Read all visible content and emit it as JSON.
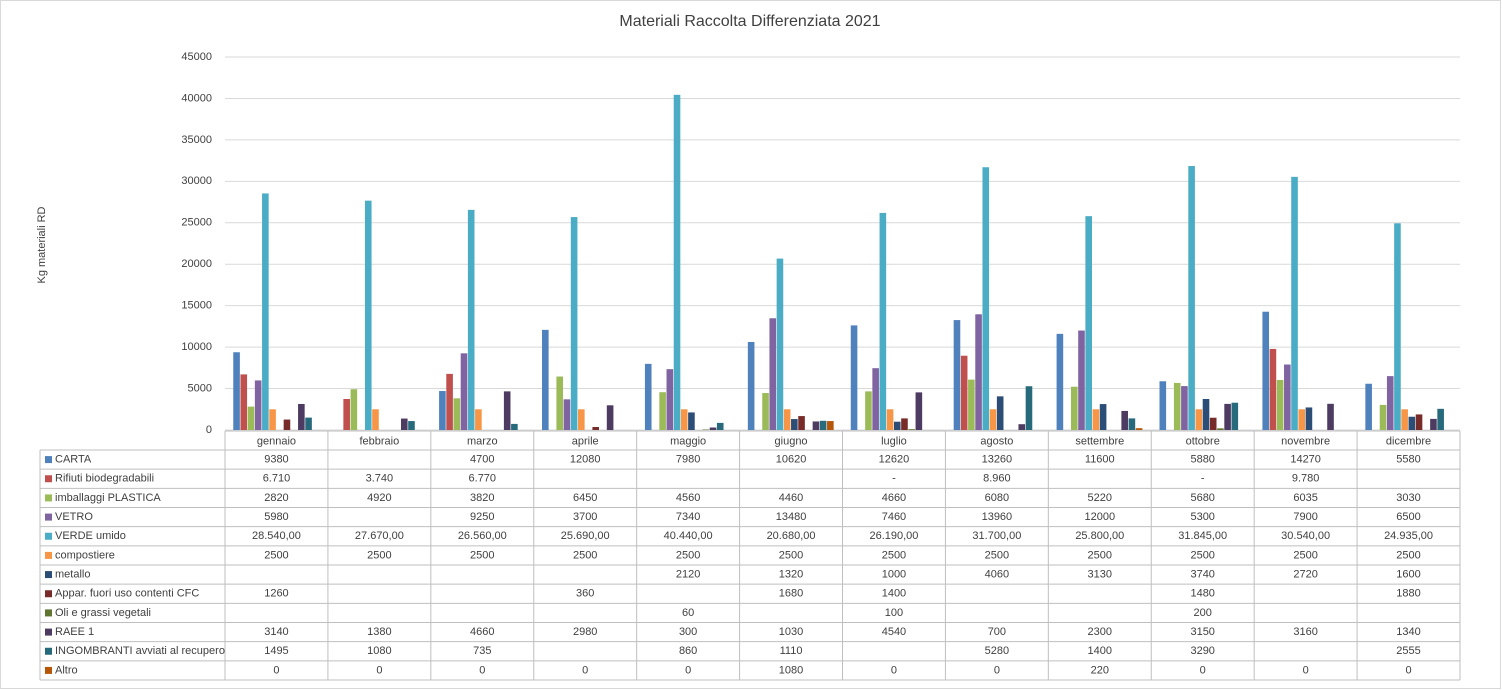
{
  "chart_data": {
    "type": "bar",
    "title": "Materiali Raccolta Differenziata 2021",
    "y_label": "Kg materiali RD",
    "categories": [
      "gennaio",
      "febbraio",
      "marzo",
      "aprile",
      "maggio",
      "giugno",
      "luglio",
      "agosto",
      "settembre",
      "ottobre",
      "novembre",
      "dicembre"
    ],
    "ylim": [
      0,
      45000
    ],
    "yticks": [
      0,
      5000,
      10000,
      15000,
      20000,
      25000,
      30000,
      35000,
      40000,
      45000
    ],
    "grid": true,
    "series": [
      {
        "name": "CARTA",
        "color": "#4f81bd",
        "values": [
          9380,
          null,
          4700,
          12080,
          7980,
          10620,
          12620,
          13260,
          11600,
          5880,
          14270,
          5580
        ]
      },
      {
        "name": "Rifiuti biodegradabili",
        "color": "#c0504d",
        "values": [
          6710,
          3740,
          6770,
          null,
          null,
          null,
          0,
          8960,
          null,
          0,
          9780,
          null
        ],
        "value_labels": [
          "6.710",
          "3.740",
          "6.770",
          null,
          null,
          null,
          "-",
          "8.960",
          null,
          "-",
          "9.780",
          null
        ]
      },
      {
        "name": "imballaggi PLASTICA",
        "color": "#9bbb59",
        "values": [
          2820,
          4920,
          3820,
          6450,
          4560,
          4460,
          4660,
          6080,
          5220,
          5680,
          6035,
          3030
        ]
      },
      {
        "name": "VETRO",
        "color": "#8064a2",
        "values": [
          5980,
          null,
          9250,
          3700,
          7340,
          13480,
          7460,
          13960,
          12000,
          5300,
          7900,
          6500
        ]
      },
      {
        "name": "VERDE  umido",
        "color": "#4bacc6",
        "values": [
          28540,
          27670,
          26560,
          25690,
          40440,
          20680,
          26190,
          31700,
          25800,
          31845,
          30540,
          24935
        ],
        "value_labels": [
          "28.540,00",
          "27.670,00",
          "26.560,00",
          "25.690,00",
          "40.440,00",
          "20.680,00",
          "26.190,00",
          "31.700,00",
          "25.800,00",
          "31.845,00",
          "30.540,00",
          "24.935,00"
        ]
      },
      {
        "name": "compostiere",
        "color": "#f79646",
        "values": [
          2500,
          2500,
          2500,
          2500,
          2500,
          2500,
          2500,
          2500,
          2500,
          2500,
          2500,
          2500
        ]
      },
      {
        "name": "metallo",
        "color": "#2c4d75",
        "values": [
          null,
          null,
          null,
          null,
          2120,
          1320,
          1000,
          4060,
          3130,
          3740,
          2720,
          1600
        ]
      },
      {
        "name": "Appar. fuori uso contenti CFC",
        "color": "#772c2a",
        "values": [
          1260,
          null,
          null,
          360,
          null,
          1680,
          1400,
          null,
          null,
          1480,
          null,
          1880
        ]
      },
      {
        "name": "Oli e grassi vegetali",
        "color": "#5f7530",
        "values": [
          null,
          null,
          null,
          null,
          60,
          null,
          100,
          null,
          null,
          200,
          null,
          null
        ]
      },
      {
        "name": "RAEE 1",
        "color": "#4d3b62",
        "values": [
          3140,
          1380,
          4660,
          2980,
          300,
          1030,
          4540,
          700,
          2300,
          3150,
          3160,
          1340
        ]
      },
      {
        "name": "INGOMBRANTI avviati al recupero",
        "color": "#276a7c",
        "values": [
          1495,
          1080,
          735,
          null,
          860,
          1110,
          null,
          5280,
          1400,
          3290,
          null,
          2555
        ]
      },
      {
        "name": "Altro",
        "color": "#b65708",
        "values": [
          0,
          0,
          0,
          0,
          0,
          1080,
          0,
          0,
          220,
          0,
          0,
          0
        ]
      }
    ]
  }
}
